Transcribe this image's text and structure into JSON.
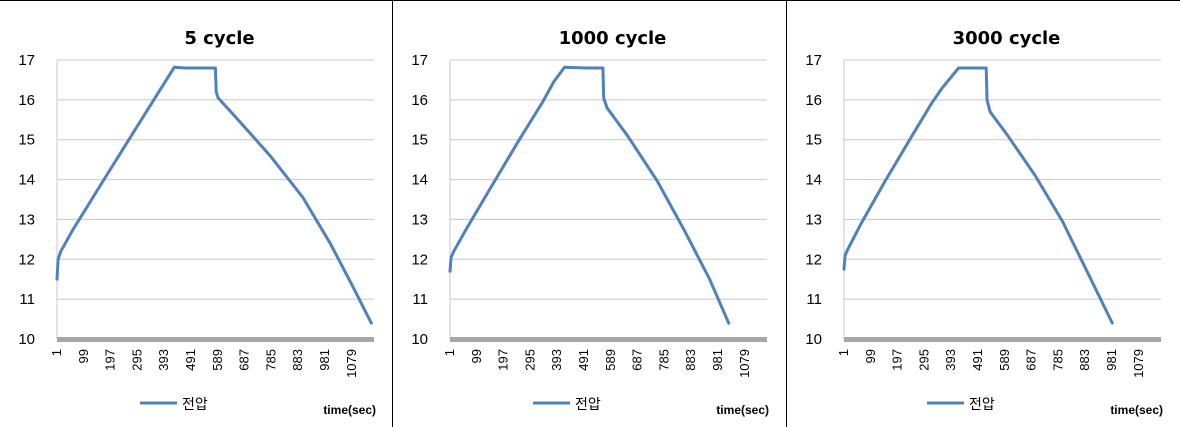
{
  "chart_data": [
    {
      "type": "line",
      "title": "5 cycle",
      "xlabel": "time(sec)",
      "ylabel": "",
      "ylim": [
        10,
        17
      ],
      "yticks": [
        "10",
        "11",
        "12",
        "13",
        "14",
        "15",
        "16",
        "17"
      ],
      "xtick_labels": [
        "1",
        "99",
        "197",
        "295",
        "393",
        "491",
        "589",
        "687",
        "785",
        "883",
        "981",
        "1079"
      ],
      "xlim": [
        1,
        1160
      ],
      "grid": true,
      "legend_position": "bottom",
      "line_color": "#4F81BD",
      "axis_color": "#A6A6A6",
      "series": [
        {
          "name": "전압",
          "x": [
            1,
            5,
            15,
            60,
            150,
            250,
            350,
            430,
            470,
            530,
            580,
            583,
            590,
            650,
            780,
            900,
            1000,
            1080,
            1150
          ],
          "values": [
            11.5,
            12.0,
            12.2,
            12.75,
            13.75,
            14.85,
            15.95,
            16.82,
            16.8,
            16.8,
            16.8,
            16.2,
            16.05,
            15.6,
            14.6,
            13.55,
            12.4,
            11.35,
            10.4
          ]
        }
      ]
    },
    {
      "type": "line",
      "title": "1000 cycle",
      "xlabel": "time(sec)",
      "ylabel": "",
      "ylim": [
        10,
        17
      ],
      "yticks": [
        "10",
        "11",
        "12",
        "13",
        "14",
        "15",
        "16",
        "17"
      ],
      "xtick_labels": [
        "1",
        "99",
        "197",
        "295",
        "393",
        "491",
        "589",
        "687",
        "785",
        "883",
        "981",
        "1079"
      ],
      "xlim": [
        1,
        1160
      ],
      "grid": true,
      "legend_position": "bottom",
      "line_color": "#4F81BD",
      "axis_color": "#A6A6A6",
      "series": [
        {
          "name": "전압",
          "x": [
            1,
            5,
            15,
            60,
            150,
            250,
            340,
            380,
            420,
            500,
            560,
            563,
            575,
            650,
            760,
            860,
            950,
            1020
          ],
          "values": [
            11.7,
            12.05,
            12.2,
            12.75,
            13.8,
            14.95,
            15.95,
            16.45,
            16.82,
            16.8,
            16.8,
            16.05,
            15.8,
            15.1,
            13.95,
            12.7,
            11.5,
            10.4
          ]
        }
      ]
    },
    {
      "type": "line",
      "title": "3000 cycle",
      "xlabel": "time(sec)",
      "ylabel": "",
      "ylim": [
        10,
        17
      ],
      "yticks": [
        "10",
        "11",
        "12",
        "13",
        "14",
        "15",
        "16",
        "17"
      ],
      "xtick_labels": [
        "1",
        "99",
        "197",
        "295",
        "393",
        "491",
        "589",
        "687",
        "785",
        "883",
        "981",
        "1079"
      ],
      "xlim": [
        1,
        1160
      ],
      "grid": true,
      "legend_position": "bottom",
      "line_color": "#4F81BD",
      "axis_color": "#A6A6A6",
      "series": [
        {
          "name": "전압",
          "x": [
            1,
            5,
            15,
            60,
            150,
            250,
            320,
            360,
            420,
            470,
            521,
            524,
            535,
            600,
            700,
            800,
            900,
            982
          ],
          "values": [
            11.75,
            12.1,
            12.25,
            12.85,
            13.95,
            15.1,
            15.9,
            16.3,
            16.8,
            16.8,
            16.8,
            16.0,
            15.7,
            15.1,
            14.1,
            12.95,
            11.55,
            10.4
          ]
        }
      ]
    }
  ]
}
